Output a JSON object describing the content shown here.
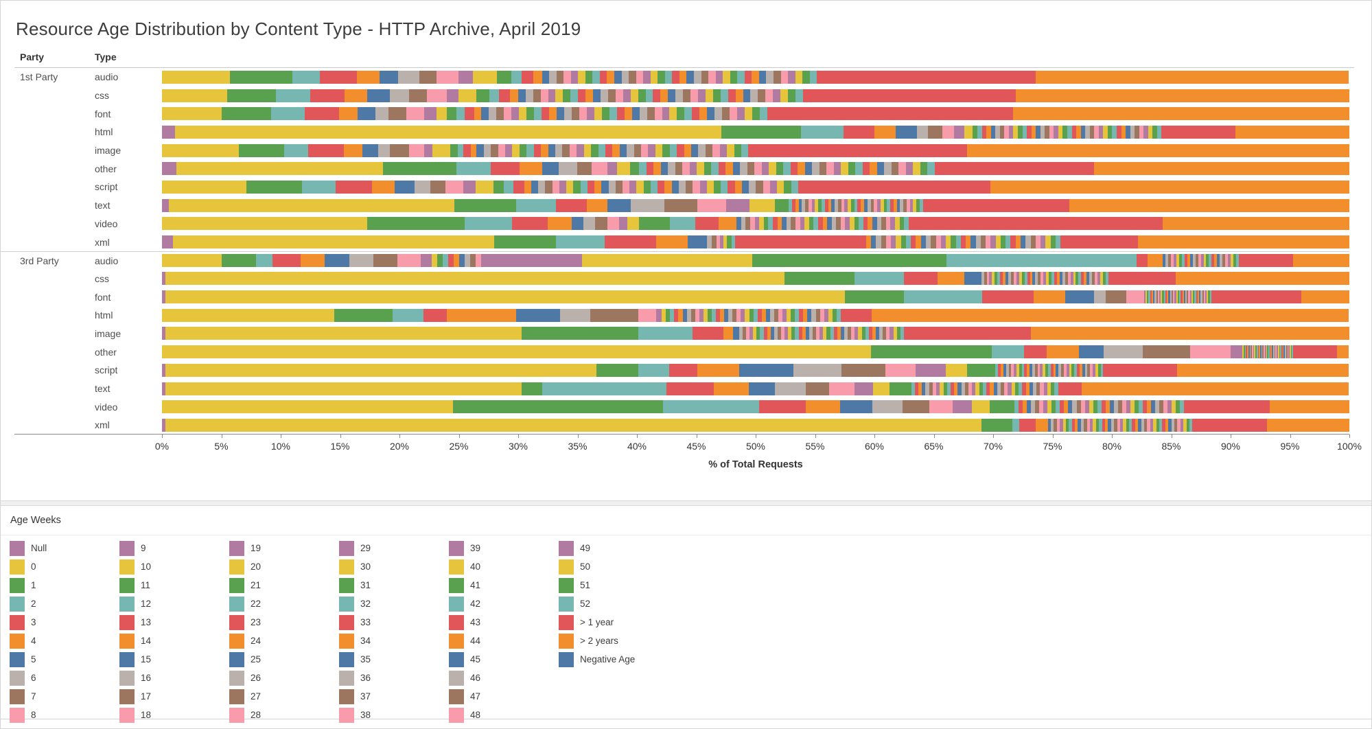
{
  "title": "Resource Age Distribution by Content Type - HTTP Archive, April 2019",
  "columns": {
    "party": "Party",
    "type": "Type"
  },
  "axis": {
    "ticks": [
      "0%",
      "5%",
      "10%",
      "15%",
      "20%",
      "25%",
      "30%",
      "35%",
      "40%",
      "45%",
      "50%",
      "55%",
      "60%",
      "65%",
      "70%",
      "75%",
      "80%",
      "85%",
      "90%",
      "95%",
      "100%"
    ],
    "title": "% of Total Requests",
    "min": 0,
    "max": 100
  },
  "palette": {
    "cycle": [
      "#e6c43c",
      "#59a14f",
      "#76b7b2",
      "#e15759",
      "#f28e2b",
      "#4e79a7",
      "#bab0ac",
      "#9d7660",
      "#f89cab",
      "#b07aa1"
    ],
    "null_color": "#b07aa1",
    "gt1": "#e15759",
    "gt2": "#f28e2b",
    "negative": "#4e79a7"
  },
  "legend": {
    "title": "Age Weeks",
    "items": [
      "Null",
      "0",
      "1",
      "2",
      "3",
      "4",
      "5",
      "6",
      "7",
      "8",
      "9",
      "10",
      "11",
      "12",
      "13",
      "14",
      "15",
      "16",
      "17",
      "18",
      "19",
      "20",
      "21",
      "22",
      "23",
      "24",
      "25",
      "26",
      "27",
      "28",
      "29",
      "30",
      "31",
      "32",
      "33",
      "34",
      "35",
      "36",
      "37",
      "38",
      "39",
      "40",
      "41",
      "42",
      "43",
      "44",
      "45",
      "46",
      "47",
      "48",
      "49",
      "50",
      "51",
      "52",
      "> 1 year",
      "> 2 years",
      "Negative Age"
    ]
  },
  "chart_data": {
    "type": "bar",
    "stacked": true,
    "orientation": "horizontal",
    "unit": "% of Total Requests",
    "xlim": [
      0,
      100
    ],
    "groups": [
      "1st Party",
      "3rd Party"
    ],
    "note": "Each row stacks: Null, age weeks 0-52 (colors cycle every 10), > 1 year, > 2 years. 'tails' spread a total % evenly across a week range (dense striped regions).",
    "rows": [
      {
        "party": "1st Party",
        "type": "audio",
        "null_pct": 0,
        "weeks": {
          "0": 5.7,
          "1": 5.3,
          "2": 2.3,
          "3": 3.1,
          "4": 1.9,
          "5": 1.6,
          "6": 1.8,
          "7": 1.4,
          "8": 1.9,
          "9": 1.2,
          "10": 2.0,
          "11": 1.2,
          "12": 0.9,
          "13": 1.0,
          "14": 0.7
        },
        "tails": [
          {
            "from": 15,
            "to": 52,
            "total": 23.2
          }
        ],
        "gt1y": 18.4,
        "gt2y": 26.4
      },
      {
        "party": "1st Party",
        "type": "css",
        "null_pct": 0,
        "weeks": {
          "0": 5.5,
          "1": 4.1,
          "2": 2.9,
          "3": 2.9,
          "4": 1.9,
          "5": 1.9,
          "6": 1.6,
          "7": 1.5,
          "8": 1.7,
          "9": 1.0,
          "10": 1.5,
          "11": 1.1,
          "12": 0.8,
          "13": 0.9,
          "14": 0.7
        },
        "tails": [
          {
            "from": 15,
            "to": 52,
            "total": 24.0
          }
        ],
        "gt1y": 17.9,
        "gt2y": 28.1
      },
      {
        "party": "1st Party",
        "type": "font",
        "null_pct": 0,
        "weeks": {
          "0": 5.0,
          "1": 4.2,
          "2": 2.8,
          "3": 2.9,
          "4": 1.6,
          "5": 1.5,
          "6": 1.1,
          "7": 1.5,
          "8": 1.5,
          "9": 1.0,
          "10": 0.9,
          "11": 0.8,
          "12": 0.7,
          "13": 0.8,
          "14": 0.6
        },
        "tails": [
          {
            "from": 15,
            "to": 52,
            "total": 24.1
          }
        ],
        "gt1y": 20.7,
        "gt2y": 28.3
      },
      {
        "party": "1st Party",
        "type": "html",
        "null_pct": 1.1,
        "weeks": {
          "0": 46.0,
          "1": 6.7,
          "2": 3.6,
          "3": 2.6,
          "4": 1.8,
          "5": 1.8,
          "6": 0.9,
          "7": 1.2,
          "8": 1.0,
          "9": 0.9,
          "10": 0.7
        },
        "tails": [
          {
            "from": 11,
            "to": 52,
            "total": 15.9
          }
        ],
        "gt1y": 6.2,
        "gt2y": 9.6
      },
      {
        "party": "1st Party",
        "type": "image",
        "null_pct": 0,
        "weeks": {
          "0": 6.5,
          "1": 3.8,
          "2": 2.0,
          "3": 3.0,
          "4": 1.6,
          "5": 1.3,
          "6": 1.0,
          "7": 1.6,
          "8": 1.3,
          "9": 0.7,
          "10": 1.5,
          "11": 0.6,
          "12": 0.5,
          "13": 0.6,
          "14": 0.5
        },
        "tails": [
          {
            "from": 15,
            "to": 52,
            "total": 22.9
          }
        ],
        "gt1y": 18.4,
        "gt2y": 32.2
      },
      {
        "party": "1st Party",
        "type": "other",
        "null_pct": 1.2,
        "weeks": {
          "0": 17.4,
          "1": 6.2,
          "2": 2.9,
          "3": 2.4,
          "4": 1.9,
          "5": 1.4,
          "6": 1.6,
          "7": 1.2,
          "8": 1.3,
          "9": 0.8,
          "10": 1.1,
          "11": 0.8
        },
        "tails": [
          {
            "from": 12,
            "to": 52,
            "total": 24.9
          }
        ],
        "gt1y": 13.4,
        "gt2y": 21.5
      },
      {
        "party": "1st Party",
        "type": "script",
        "null_pct": 0,
        "weeks": {
          "0": 7.1,
          "1": 4.7,
          "2": 2.8,
          "3": 3.1,
          "4": 1.9,
          "5": 1.7,
          "6": 1.3,
          "7": 1.3,
          "8": 1.5,
          "9": 1.0,
          "10": 1.5,
          "11": 0.9,
          "12": 0.8,
          "13": 0.9,
          "14": 0.6
        },
        "tails": [
          {
            "from": 15,
            "to": 52,
            "total": 22.5
          }
        ],
        "gt1y": 16.2,
        "gt2y": 30.2
      },
      {
        "party": "1st Party",
        "type": "text",
        "null_pct": 0.6,
        "weeks": {
          "0": 24.0,
          "1": 5.2,
          "2": 3.4,
          "3": 2.6,
          "4": 1.7,
          "5": 2.0,
          "6": 2.8,
          "7": 2.8,
          "8": 2.4,
          "9": 2.0,
          "10": 2.1,
          "11": 1.2
        },
        "tails": [
          {
            "from": 12,
            "to": 52,
            "total": 11.3
          }
        ],
        "gt1y": 12.3,
        "gt2y": 23.6
      },
      {
        "party": "1st Party",
        "type": "video",
        "null_pct": 0,
        "weeks": {
          "0": 17.3,
          "1": 8.2,
          "2": 4.0,
          "3": 3.0,
          "4": 2.0,
          "5": 1.0,
          "6": 1.0,
          "7": 1.0,
          "8": 1.0,
          "9": 0.7,
          "10": 1.0,
          "11": 2.6,
          "12": 2.1,
          "13": 2.0,
          "14": 1.5
        },
        "tails": [
          {
            "from": 15,
            "to": 52,
            "total": 14.5
          }
        ],
        "gt1y": 21.4,
        "gt2y": 15.7
      },
      {
        "party": "1st Party",
        "type": "xml",
        "null_pct": 0.9,
        "weeks": {
          "0": 27.1,
          "1": 5.2,
          "2": 4.1,
          "3": 4.3,
          "4": 2.7,
          "5": 1.6,
          "6": 0.4,
          "7": 0.4,
          "8": 0.3,
          "9": 0.3,
          "10": 0.3,
          "11": 0.4,
          "12": 0.3,
          "13": 11.0
        },
        "tails": [
          {
            "from": 14,
            "to": 52,
            "total": 16.4
          }
        ],
        "gt1y": 6.5,
        "gt2y": 17.8
      },
      {
        "party": "3rd Party",
        "type": "audio",
        "null_pct": 0,
        "weeks": {
          "0": 5.0,
          "1": 2.9,
          "2": 1.4,
          "3": 2.4,
          "4": 2.0,
          "5": 2.1,
          "6": 2.0,
          "7": 2.0,
          "8": 2.0,
          "9": 0.9,
          "19": 8.5,
          "20": 14.3,
          "21": 16.4,
          "22": 16.0,
          "23": 0.9,
          "24": 1.3
        },
        "tails": [
          {
            "from": 10,
            "to": 18,
            "total": 4.2
          },
          {
            "from": 25,
            "to": 52,
            "total": 6.4
          }
        ],
        "gt1y": 4.6,
        "gt2y": 4.7
      },
      {
        "party": "3rd Party",
        "type": "css",
        "null_pct": 0.3,
        "weeks": {
          "0": 52.1,
          "1": 5.9,
          "2": 4.2,
          "3": 2.8,
          "4": 2.3,
          "5": 1.4
        },
        "tails": [
          {
            "from": 6,
            "to": 52,
            "total": 10.7
          }
        ],
        "gt1y": 5.7,
        "gt2y": 14.6
      },
      {
        "party": "3rd Party",
        "type": "font",
        "null_pct": 0.3,
        "weeks": {
          "0": 57.2,
          "1": 5.0,
          "2": 6.6,
          "3": 4.3,
          "4": 2.7,
          "5": 2.4,
          "6": 1.0,
          "7": 1.7,
          "8": 1.5
        },
        "tails": [
          {
            "from": 9,
            "to": 52,
            "total": 5.7
          }
        ],
        "gt1y": 7.6,
        "gt2y": 4.0
      },
      {
        "party": "3rd Party",
        "type": "html",
        "null_pct": 0,
        "weeks": {
          "0": 14.5,
          "1": 4.9,
          "2": 2.6,
          "3": 2.0,
          "4": 5.8,
          "5": 3.7,
          "6": 2.6,
          "7": 4.0,
          "8": 1.5,
          "9": 0.5
        },
        "tails": [
          {
            "from": 10,
            "to": 52,
            "total": 15.1
          }
        ],
        "gt1y": 2.6,
        "gt2y": 40.2
      },
      {
        "party": "3rd Party",
        "type": "image",
        "null_pct": 0.3,
        "weeks": {
          "0": 30.0,
          "1": 9.8,
          "2": 4.6,
          "3": 2.6,
          "4": 0.8,
          "5": 0.5
        },
        "tails": [
          {
            "from": 6,
            "to": 52,
            "total": 13.9
          }
        ],
        "gt1y": 10.7,
        "gt2y": 26.8
      },
      {
        "party": "3rd Party",
        "type": "other",
        "null_pct": 0,
        "weeks": {
          "0": 59.7,
          "1": 10.2,
          "2": 2.7,
          "3": 1.9,
          "4": 2.7,
          "5": 2.1,
          "6": 3.3,
          "7": 4.0,
          "8": 3.4,
          "9": 1.0
        },
        "tails": [
          {
            "from": 10,
            "to": 52,
            "total": 4.3
          }
        ],
        "gt1y": 3.7,
        "gt2y": 1.0
      },
      {
        "party": "3rd Party",
        "type": "script",
        "null_pct": 0.3,
        "weeks": {
          "0": 36.3,
          "1": 3.5,
          "2": 2.6,
          "3": 2.4,
          "4": 3.5,
          "5": 4.6,
          "6": 4.0,
          "7": 3.7,
          "8": 2.6,
          "9": 2.5,
          "10": 1.8,
          "11": 2.4
        },
        "tails": [
          {
            "from": 12,
            "to": 52,
            "total": 9.1
          }
        ],
        "gt1y": 6.2,
        "gt2y": 14.5
      },
      {
        "party": "3rd Party",
        "type": "text",
        "null_pct": 0.3,
        "weeks": {
          "0": 30.0,
          "1": 1.7,
          "2": 10.5,
          "3": 4.0,
          "4": 2.9,
          "5": 2.2,
          "6": 2.6,
          "7": 2.0,
          "8": 2.1,
          "9": 1.6,
          "10": 1.4,
          "11": 1.8
        },
        "tails": [
          {
            "from": 12,
            "to": 52,
            "total": 12.4
          }
        ],
        "gt1y": 2.0,
        "gt2y": 22.5
      },
      {
        "party": "3rd Party",
        "type": "video",
        "null_pct": 0,
        "weeks": {
          "0": 24.5,
          "1": 17.7,
          "2": 8.1,
          "3": 3.9,
          "4": 2.9,
          "5": 2.7,
          "6": 2.6,
          "7": 2.2,
          "8": 2.0,
          "9": 1.6,
          "10": 1.5,
          "11": 2.1
        },
        "tails": [
          {
            "from": 12,
            "to": 52,
            "total": 14.3
          }
        ],
        "gt1y": 7.2,
        "gt2y": 6.7
      },
      {
        "party": "3rd Party",
        "type": "xml",
        "null_pct": 0.3,
        "weeks": {
          "0": 68.7,
          "1": 2.6,
          "2": 0.6,
          "3": 1.4,
          "4": 1.0
        },
        "tails": [
          {
            "from": 5,
            "to": 52,
            "total": 12.2
          }
        ],
        "gt1y": 6.3,
        "gt2y": 6.9
      }
    ]
  }
}
